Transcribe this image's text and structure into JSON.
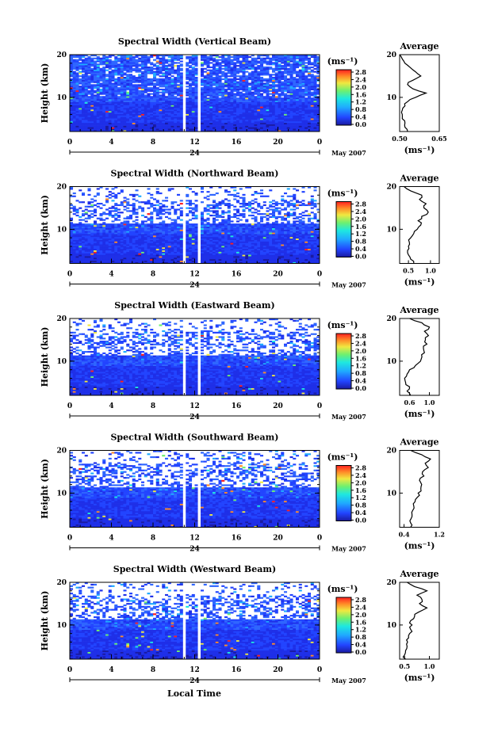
{
  "figure": {
    "xlabel": "Local Time",
    "date_label": "May 2007",
    "day_label": "24",
    "panel_ylabel": "Height (km)",
    "avg_title": "Average",
    "unit_label": "(ms⁻¹)",
    "avg_xlabel": "(ms⁻¹)"
  },
  "chart_data": [
    {
      "type": "heatmap",
      "title": "Spectral Width (Vertical Beam)",
      "beam": "vertical",
      "x_range": [
        0,
        24
      ],
      "x_ticks": [
        "0",
        "4",
        "8",
        "12",
        "16",
        "20",
        "0"
      ],
      "y_range": [
        2,
        20
      ],
      "y_ticks": [
        "10",
        "20"
      ],
      "colorbar_range": [
        0.0,
        3.0
      ],
      "colorbar_ticks": [
        "2.8",
        "2.4",
        "2.0",
        "1.6",
        "1.2",
        "0.8",
        "0.4",
        "0.0"
      ],
      "data_gaps_hours": [
        [
          10.8,
          11.2
        ],
        [
          12.3,
          12.6
        ]
      ],
      "profile": {
        "title": "Average",
        "xlim": [
          0.5,
          0.65
        ],
        "x_ticks": [
          "0.50",
          "0.65"
        ],
        "y_ticks": [
          "10",
          "20"
        ],
        "height_km": [
          2,
          3,
          4,
          5,
          6,
          7,
          8,
          9,
          10,
          11,
          12,
          13,
          14,
          15,
          16,
          17,
          18,
          19,
          20
        ],
        "width_ms": [
          0.53,
          0.52,
          0.52,
          0.51,
          0.51,
          0.51,
          0.52,
          0.53,
          0.56,
          0.6,
          0.55,
          0.53,
          0.55,
          0.58,
          0.56,
          0.54,
          0.52,
          0.51,
          0.5
        ]
      }
    },
    {
      "type": "heatmap",
      "title": "Spectral Width (Northward Beam)",
      "beam": "north",
      "x_range": [
        0,
        24
      ],
      "x_ticks": [
        "0",
        "4",
        "8",
        "12",
        "16",
        "20",
        "0"
      ],
      "y_range": [
        2,
        20
      ],
      "y_ticks": [
        "10",
        "20"
      ],
      "colorbar_range": [
        0.0,
        3.0
      ],
      "colorbar_ticks": [
        "2.8",
        "2.4",
        "2.0",
        "1.6",
        "1.2",
        "0.8",
        "0.4",
        "0.0"
      ],
      "data_gaps_hours": [
        [
          10.8,
          11.2
        ],
        [
          12.3,
          12.6
        ]
      ],
      "profile": {
        "title": "Average",
        "xlim": [
          0.3,
          1.2
        ],
        "x_ticks": [
          "0.5",
          "1.0"
        ],
        "y_ticks": [
          "10",
          "20"
        ],
        "height_km": [
          2,
          3,
          4,
          5,
          6,
          7,
          8,
          9,
          10,
          11,
          12,
          13,
          14,
          15,
          16,
          17,
          18,
          19,
          20
        ],
        "width_ms": [
          0.62,
          0.55,
          0.5,
          0.48,
          0.5,
          0.52,
          0.55,
          0.62,
          0.7,
          0.78,
          0.72,
          0.8,
          0.95,
          0.85,
          0.9,
          0.75,
          0.8,
          0.55,
          0.4
        ]
      }
    },
    {
      "type": "heatmap",
      "title": "Spectral Width (Eastward Beam)",
      "beam": "east",
      "x_range": [
        0,
        24
      ],
      "x_ticks": [
        "0",
        "4",
        "8",
        "12",
        "16",
        "20",
        "0"
      ],
      "y_range": [
        2,
        20
      ],
      "y_ticks": [
        "10",
        "20"
      ],
      "colorbar_range": [
        0.0,
        3.0
      ],
      "colorbar_ticks": [
        "2.8",
        "2.4",
        "2.0",
        "1.6",
        "1.2",
        "0.8",
        "0.4",
        "0.0"
      ],
      "data_gaps_hours": [
        [
          10.8,
          11.2
        ],
        [
          12.3,
          12.6
        ]
      ],
      "profile": {
        "title": "Average",
        "xlim": [
          0.4,
          1.2
        ],
        "x_ticks": [
          "0.6",
          "1.0"
        ],
        "y_ticks": [
          "10",
          "20"
        ],
        "height_km": [
          2,
          3,
          4,
          5,
          6,
          7,
          8,
          9,
          10,
          11,
          12,
          13,
          14,
          15,
          16,
          17,
          18,
          19,
          20
        ],
        "width_ms": [
          0.62,
          0.55,
          0.6,
          0.52,
          0.5,
          0.55,
          0.6,
          0.72,
          0.82,
          0.85,
          0.9,
          0.88,
          0.95,
          0.92,
          0.98,
          0.9,
          1.0,
          0.85,
          0.6
        ]
      }
    },
    {
      "type": "heatmap",
      "title": "Spectral Width (Southward Beam)",
      "beam": "south",
      "x_range": [
        0,
        24
      ],
      "x_ticks": [
        "0",
        "4",
        "8",
        "12",
        "16",
        "20",
        "0"
      ],
      "y_range": [
        2,
        20
      ],
      "y_ticks": [
        "10",
        "20"
      ],
      "colorbar_range": [
        0.0,
        3.0
      ],
      "colorbar_ticks": [
        "2.8",
        "2.4",
        "2.0",
        "1.6",
        "1.2",
        "0.8",
        "0.4",
        "0.0"
      ],
      "data_gaps_hours": [
        [
          10.8,
          11.2
        ],
        [
          12.3,
          12.6
        ]
      ],
      "profile": {
        "title": "Average",
        "xlim": [
          0.3,
          1.2
        ],
        "x_ticks": [
          "0.4",
          "1.2"
        ],
        "y_ticks": [
          "10",
          "20"
        ],
        "height_km": [
          2,
          3,
          4,
          5,
          6,
          7,
          8,
          9,
          10,
          11,
          12,
          13,
          14,
          15,
          16,
          17,
          18,
          19,
          20
        ],
        "width_ms": [
          0.55,
          0.55,
          0.56,
          0.58,
          0.6,
          0.62,
          0.65,
          0.7,
          0.72,
          0.78,
          0.8,
          0.75,
          0.85,
          0.82,
          0.95,
          0.88,
          1.0,
          0.8,
          0.55
        ]
      }
    },
    {
      "type": "heatmap",
      "title": "Spectral Width (Westward Beam)",
      "beam": "west",
      "x_range": [
        0,
        24
      ],
      "x_ticks": [
        "0",
        "4",
        "8",
        "12",
        "16",
        "20",
        "0"
      ],
      "y_range": [
        2,
        20
      ],
      "y_ticks": [
        "10",
        "20"
      ],
      "colorbar_range": [
        0.0,
        3.0
      ],
      "colorbar_ticks": [
        "2.8",
        "2.4",
        "2.0",
        "1.6",
        "1.2",
        "0.8",
        "0.4",
        "0.0"
      ],
      "data_gaps_hours": [
        [
          10.8,
          11.2
        ],
        [
          12.3,
          12.6
        ]
      ],
      "profile": {
        "title": "Average",
        "xlim": [
          0.4,
          1.2
        ],
        "x_ticks": [
          "0.5",
          "1.0"
        ],
        "y_ticks": [
          "10",
          "20"
        ],
        "height_km": [
          2,
          3,
          4,
          5,
          6,
          7,
          8,
          9,
          10,
          11,
          12,
          13,
          14,
          15,
          16,
          17,
          18,
          19,
          20
        ],
        "width_ms": [
          0.52,
          0.5,
          0.52,
          0.55,
          0.56,
          0.58,
          0.6,
          0.62,
          0.65,
          0.62,
          0.7,
          0.78,
          0.95,
          0.8,
          0.85,
          0.75,
          0.95,
          0.7,
          0.55
        ]
      }
    }
  ]
}
